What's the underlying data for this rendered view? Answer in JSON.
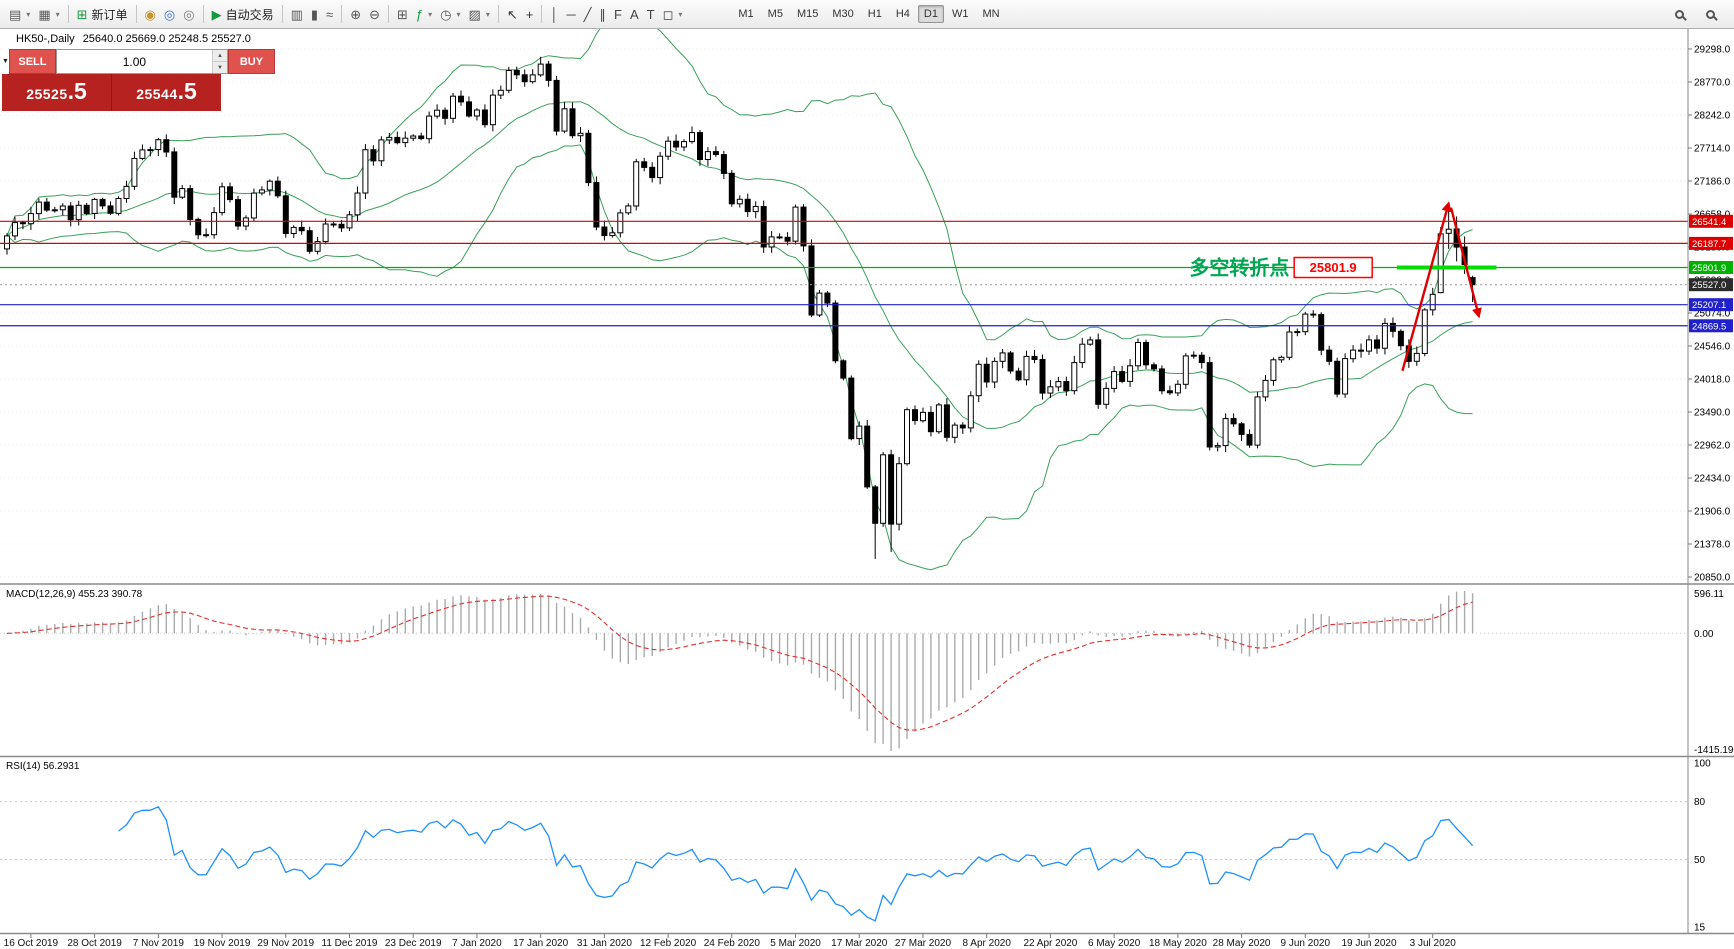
{
  "toolbar": {
    "new_order_label": "新订单",
    "autotrading_label": "自动交易",
    "active_timeframe": "D1",
    "timeframes": [
      "M1",
      "M5",
      "M15",
      "M30",
      "H1",
      "H4",
      "D1",
      "W1",
      "MN"
    ],
    "groups": [
      {
        "items": [
          {
            "name": "new-chart-button",
            "icon": "new-chart-icon",
            "glyph": "▤",
            "glyph_color": "#5a5a5a",
            "dropdown": true
          },
          {
            "name": "profiles-button",
            "icon": "profiles-icon",
            "glyph": "▦",
            "glyph_color": "#5a5a5a",
            "dropdown": true
          }
        ]
      },
      {
        "items": [
          {
            "name": "new-order-button",
            "icon": "new-order-icon",
            "glyph": "⊞",
            "glyph_color": "#159a3f",
            "label": "新订单"
          }
        ]
      },
      {
        "items": [
          {
            "name": "market-watch-button",
            "icon": "market-watch-icon",
            "glyph": "◉",
            "glyph_color": "#c8952a"
          },
          {
            "name": "data-window-button",
            "icon": "data-window-icon",
            "glyph": "◎",
            "glyph_color": "#3a6fd8"
          },
          {
            "name": "navigator-button",
            "icon": "navigator-icon",
            "glyph": "◎",
            "glyph_color": "#7a7a7a"
          }
        ]
      },
      {
        "items": [
          {
            "name": "autotrading-button",
            "icon": "autotrading-play-icon",
            "glyph": "▶",
            "glyph_color": "#159a3f",
            "label": "自动交易"
          }
        ]
      },
      {
        "items": [
          {
            "name": "bar-chart-type-button",
            "icon": "bar-chart-icon",
            "glyph": "▥",
            "glyph_color": "#555555"
          },
          {
            "name": "candlestick-chart-type-button",
            "icon": "candlestick-chart-icon",
            "glyph": "▮",
            "glyph_color": "#555555"
          },
          {
            "name": "line-chart-type-button",
            "icon": "line-chart-icon",
            "glyph": "≈",
            "glyph_color": "#555555"
          }
        ]
      },
      {
        "items": [
          {
            "name": "zoom-in-button",
            "icon": "zoom-in-icon",
            "glyph": "⊕",
            "glyph_color": "#555555"
          },
          {
            "name": "zoom-out-button",
            "icon": "zoom-out-icon",
            "glyph": "⊖",
            "glyph_color": "#555555"
          }
        ]
      },
      {
        "items": [
          {
            "name": "tile-windows-button",
            "icon": "tile-windows-icon",
            "glyph": "⊞",
            "glyph_color": "#555555"
          },
          {
            "name": "indicators-button",
            "icon": "indicators-icon",
            "glyph": "ƒ",
            "glyph_color": "#159a3f",
            "dropdown": true
          },
          {
            "name": "periods-button",
            "icon": "clock-icon",
            "glyph": "◷",
            "glyph_color": "#555555",
            "dropdown": true
          },
          {
            "name": "templates-button",
            "icon": "template-icon",
            "glyph": "▨",
            "glyph_color": "#555555",
            "dropdown": true
          }
        ]
      },
      {
        "items": [
          {
            "name": "cursor-button",
            "icon": "cursor-icon",
            "glyph": "↖",
            "glyph_color": "#333333"
          },
          {
            "name": "crosshair-button",
            "icon": "crosshair-icon",
            "glyph": "+",
            "glyph_color": "#333333"
          }
        ]
      },
      {
        "items": [
          {
            "name": "vertical-line-button",
            "icon": "vertical-line-icon",
            "glyph": "│",
            "glyph_color": "#444444"
          },
          {
            "name": "horizontal-line-button",
            "icon": "horizontal-line-icon",
            "glyph": "─",
            "glyph_color": "#444444"
          },
          {
            "name": "trendline-button",
            "icon": "trendline-icon",
            "glyph": "╱",
            "glyph_color": "#444444"
          },
          {
            "name": "channel-button",
            "icon": "channel-icon",
            "glyph": "∥",
            "glyph_color": "#444444"
          },
          {
            "name": "fibonacci-button",
            "icon": "fibonacci-icon",
            "glyph": "F",
            "glyph_color": "#444444"
          },
          {
            "name": "text-button",
            "icon": "text-icon",
            "glyph": "A",
            "glyph_color": "#444444"
          },
          {
            "name": "label-button",
            "icon": "label-icon",
            "glyph": "T",
            "glyph_color": "#444444"
          },
          {
            "name": "shapes-button",
            "icon": "shapes-icon",
            "glyph": "◻",
            "glyph_color": "#444444",
            "dropdown": true
          }
        ]
      },
      {
        "type": "timeframes"
      },
      {
        "type": "right",
        "items": [
          {
            "name": "symbol-search-button",
            "icon": "magnifier-icon",
            "glyph": "css-magnifier"
          },
          {
            "name": "chart-search-button",
            "icon": "magnifier-arrow-icon",
            "glyph": "css-magnifier"
          }
        ]
      }
    ]
  },
  "chart_header": {
    "symbol_period": "HK50-,Daily",
    "ohlc": "25640.0 25669.0 25248.5 25527.0"
  },
  "one_click": {
    "collapse_icon": "▼",
    "sell_label": "SELL",
    "buy_label": "BUY",
    "volume": "1.00",
    "sell_price_main": "25525",
    "sell_price_frac": ".5",
    "buy_price_main": "25544",
    "buy_price_frac": ".5"
  },
  "colors": {
    "up_candle": "#ffffff",
    "down_candle": "#000000",
    "outline": "#000000",
    "bollinger": "#3aa05a",
    "macd_hist": "#ababab",
    "macd_signal": "#e03232",
    "rsi_line": "#1e90ff",
    "arrow_red": "#e00000",
    "bid_badge": "#2b2b2b"
  },
  "chart_data": {
    "type": "candlestick",
    "symbol": "HK50-",
    "timeframe": "Daily",
    "last_bar": {
      "open": 25640.0,
      "high": 25669.0,
      "low": 25248.5,
      "close": 25527.0
    },
    "first_open": 26100,
    "closes": [
      26308,
      26521,
      26503,
      26664,
      26848,
      26720,
      26725,
      26786,
      26567,
      26798,
      26667,
      26891,
      26787,
      26668,
      26906,
      27100,
      27547,
      27683,
      27688,
      27847,
      27651,
      26927,
      27065,
      26571,
      26324,
      26327,
      26681,
      27093,
      26889,
      26466,
      26595,
      26993,
      27043,
      27183,
      26949,
      26346,
      26444,
      26391,
      26062,
      26217,
      26498,
      26494,
      26436,
      26645,
      26994,
      27687,
      27508,
      27843,
      27884,
      27800,
      27871,
      27906,
      27864,
      28225,
      28319,
      28189,
      28543,
      28452,
      28226,
      28322,
      28087,
      28561,
      28638,
      28954,
      28885,
      28774,
      28883,
      29056,
      28796,
      27985,
      28341,
      27910,
      27949,
      27161,
      26450,
      26313,
      26357,
      26676,
      26787,
      27494,
      27405,
      27241,
      27583,
      27823,
      27730,
      27816,
      27960,
      27530,
      27656,
      27609,
      27309,
      26821,
      26893,
      26697,
      26778,
      26130,
      26292,
      26285,
      26223,
      26768,
      26147,
      25041,
      25392,
      25232,
      24309,
      24033,
      23064,
      23264,
      22292,
      21709,
      22805,
      21696,
      22663,
      23527,
      23352,
      23484,
      23175,
      23603,
      23085,
      23280,
      23236,
      23750,
      24253,
      23970,
      24300,
      24435,
      24145,
      24006,
      24380,
      24330,
      23793,
      23893,
      23977,
      23831,
      24280,
      24575,
      24643,
      23613,
      23868,
      24137,
      23980,
      24230,
      24602,
      24245,
      24180,
      23829,
      23797,
      23934,
      24388,
      24399,
      24280,
      22930,
      22952,
      23384,
      23301,
      23132,
      22961,
      23732,
      23996,
      24326,
      24366,
      24770,
      24776,
      25057,
      25049,
      24480,
      24301,
      23777,
      24344,
      24481,
      24464,
      24643,
      24511,
      24907,
      24781,
      24550,
      24301,
      24427,
      25124,
      25373,
      26339,
      26415,
      26129,
      25850,
      25527
    ],
    "recent_bars": {
      "180": [
        25400,
        26450,
        25390,
        26339
      ],
      "181": [
        26350,
        26780,
        26100,
        26415
      ],
      "182": [
        26420,
        26620,
        25900,
        26129
      ],
      "183": [
        26130,
        26300,
        25700,
        25850
      ],
      "184": [
        25640,
        25669,
        25248.5,
        25527
      ]
    },
    "high_overrides": {
      "67": 29174
    },
    "low_overrides": {
      "109": 21139,
      "111": 21250
    },
    "x_labels": [
      "16 Oct 2019",
      "28 Oct 2019",
      "7 Nov 2019",
      "19 Nov 2019",
      "29 Nov 2019",
      "11 Dec 2019",
      "23 Dec 2019",
      "7 Jan 2020",
      "17 Jan 2020",
      "31 Jan 2020",
      "12 Feb 2020",
      "24 Feb 2020",
      "5 Mar 2020",
      "17 Mar 2020",
      "27 Mar 2020",
      "8 Apr 2020",
      "22 Apr 2020",
      "6 May 2020",
      "18 May 2020",
      "28 May 2020",
      "9 Jun 2020",
      "19 Jun 2020",
      "3 Jul 2020"
    ],
    "label_start_bar": 3,
    "label_step": 8,
    "y_ticks": [
      "29298.0",
      "28770.0",
      "28242.0",
      "27714.0",
      "27186.0",
      "26658.0",
      "26130.0",
      "25602.0",
      "25074.0",
      "24546.0",
      "24018.0",
      "23490.0",
      "22962.0",
      "22434.0",
      "21906.0",
      "21378.0",
      "20850.0"
    ],
    "indicators": {
      "bollinger": {
        "period": 20,
        "deviation": 2
      },
      "macd": {
        "fast": 12,
        "slow": 26,
        "signal": 9,
        "label": "MACD(12,26,9) 455.23 390.78",
        "axis_labels": [
          "596.11",
          "0.00",
          "-1415.19"
        ]
      },
      "rsi": {
        "period": 14,
        "label": "RSI(14) 56.2931",
        "levels": [
          80,
          50
        ],
        "axis_labels": [
          "100",
          "80",
          "50",
          "15"
        ],
        "range": [
          15,
          100
        ]
      }
    },
    "objects": {
      "hlines": [
        {
          "price": 26541.4,
          "color": "#dd0000",
          "badge": "26541.4"
        },
        {
          "price": 26187.7,
          "color": "#dd0000",
          "badge": "26187.7"
        },
        {
          "price": 25801.9,
          "color": "#00b200",
          "badge": "25801.9"
        },
        {
          "price": 25207.1,
          "color": "#2121cc",
          "badge": "25207.1"
        },
        {
          "price": 24869.5,
          "color": "#2121cc",
          "badge": "24869.5"
        }
      ],
      "bid_line": {
        "price": 25527.0,
        "badge": "25527.0"
      },
      "thick_segment": {
        "price": 25801.9,
        "from_bar": 174.5,
        "to_bar": 187,
        "color": "#00dd00",
        "width": 4
      },
      "arrows": [
        {
          "from_bar": 175.2,
          "from_price": 24150,
          "to_bar": 181,
          "to_price": 26830
        },
        {
          "from_bar": 181.3,
          "from_price": 26760,
          "to_bar": 184.8,
          "to_price": 25020
        }
      ],
      "text_label": {
        "text": "多空转折点",
        "color": "#00a651",
        "end_bar": 161,
        "price": 25690,
        "font_size": 20
      },
      "box_label": {
        "text": "25801.9",
        "color": "#ff0000",
        "center_bar": 166.5,
        "price": 25801.9
      }
    }
  }
}
